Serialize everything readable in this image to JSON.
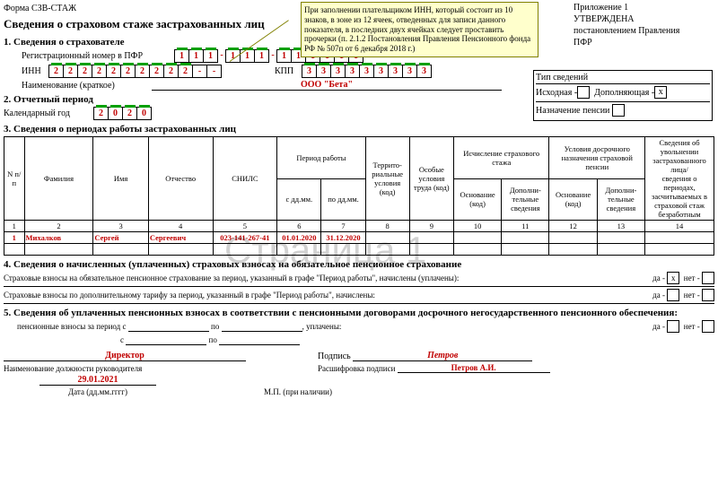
{
  "form_code": "Форма СЗВ-СТАЖ",
  "attachment": {
    "num": "Приложение 1",
    "approved": "УТВЕРЖДЕНА",
    "by": "постановлением Правления",
    "org": "ПФР"
  },
  "callout": "При заполнении плательщиком ИНН, который состоит из 10 знаков, в зоне из 12 ячеек, отведенных для записи данного показателя, в последних двух ячейках следует проставить прочерки (п. 2.1.2 Постановления Правления Пенсионного фонда РФ № 507п от 6 декабря 2018 г.)",
  "title": "Сведения о страховом стаже застрахованных лиц",
  "section1": "1. Сведения о страхователе",
  "regnum_label": "Регистрационный номер в ПФР",
  "regnum": [
    "1",
    "1",
    "1",
    "-",
    "1",
    "1",
    "1",
    "-",
    "1",
    "1",
    "1",
    "1",
    "1",
    "1"
  ],
  "inn_label": "ИНН",
  "inn": [
    "2",
    "2",
    "2",
    "2",
    "2",
    "2",
    "2",
    "2",
    "2",
    "2",
    "-",
    "-"
  ],
  "kpp_label": "КПП",
  "kpp": [
    "3",
    "3",
    "3",
    "3",
    "3",
    "3",
    "3",
    "3",
    "3"
  ],
  "name_label": "Наименование (краткое)",
  "name_value": "ООО \"Бета\"",
  "typebox": {
    "title": "Тип сведений",
    "ish": "Исходная -",
    "dop": "Дополняющая -",
    "x": "х",
    "naz": "Назначение пенсии"
  },
  "section2": "2. Отчетный период",
  "calyear_label": "Календарный год",
  "calyear": [
    "2",
    "0",
    "2",
    "0"
  ],
  "section3": "3. Сведения о периодах работы застрахованных лиц",
  "headers": {
    "n": "N п/п",
    "fam": "Фамилия",
    "im": "Имя",
    "ot": "Отчество",
    "snils": "СНИЛС",
    "period": "Период работы",
    "from": "с дд.мм.",
    "to": "по дд.мм.",
    "terr": "Террито-риальные условия (код)",
    "osob": "Особые условия труда (код)",
    "isch": "Исчисление страхового стажа",
    "osn": "Основание (код)",
    "dopsv": "Дополни-тельные сведения",
    "usl": "Условия досрочного назначения страховой пенсии",
    "uv": "Сведения об увольнении застрахованного лица/",
    "uv2": "сведения о периодах, засчитываемых в страховой стаж безработным"
  },
  "colnums": [
    "1",
    "2",
    "3",
    "4",
    "5",
    "6",
    "7",
    "8",
    "9",
    "10",
    "11",
    "12",
    "13",
    "14"
  ],
  "datarow": {
    "n": "1",
    "fam": "Михалков",
    "im": "Сергей",
    "ot": "Сергеевич",
    "snils": "023-141-267-41",
    "from": "01.01.2020",
    "to": "31.12.2020"
  },
  "section4": "4. Сведения о начисленных (уплаченных) страховых взносах на обязательное пенсионное страхование",
  "s4_line1": "Страховые взносы на обязательное пенсионное страхование за период, указанный в графе \"Период работы\", начислены (уплачены):",
  "s4_line2": "Страховые взносы по дополнительному тарифу за период, указанный в графе \"Период работы\", начислены:",
  "da": "да -",
  "net": "нет -",
  "x": "х",
  "section5": "5. Сведения об уплаченных пенсионных взносах в соответствии с пенсионными договорами досрочного негосударственного пенсионного обеспечения:",
  "s5_a": "пенсионные взносы за период с",
  "s5_b": "по",
  "s5_c": ", уплачены:",
  "s5_d": "с",
  "s5_e": "по",
  "footer": {
    "position": "Директор",
    "position_label": "Наименование должности руководителя",
    "sign": "Подпись",
    "sign_val": "Петров",
    "decode": "Расшифровка подписи",
    "decode_val": "Петров А.И.",
    "date": "29.01.2021",
    "date_label": "Дата (дд.мм.гггг)",
    "mp": "М.П. (при наличии)"
  },
  "watermark": "Страница 1"
}
